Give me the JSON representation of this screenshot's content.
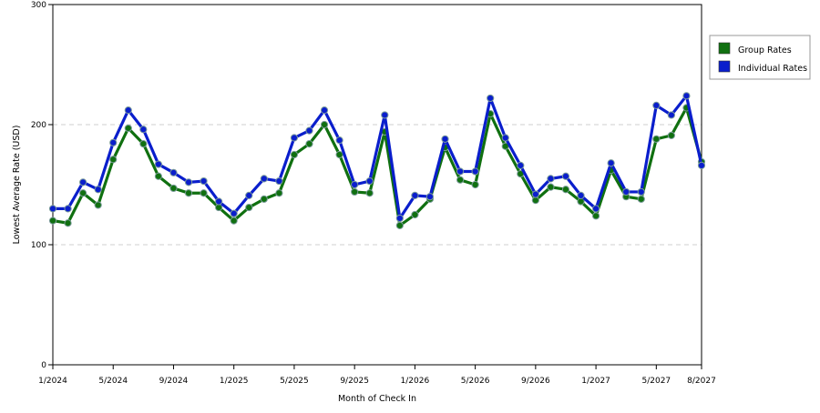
{
  "chart_data": {
    "type": "line",
    "title": "",
    "xlabel": "Month of Check In",
    "ylabel": "Lowest Average Rate (USD)",
    "ylim": [
      0,
      300
    ],
    "yticks": [
      "0",
      "100",
      "200",
      "300"
    ],
    "grid": "horizontal dashed",
    "legend_position": "right",
    "x": [
      "1/2024",
      "2/2024",
      "3/2024",
      "4/2024",
      "5/2024",
      "6/2024",
      "7/2024",
      "8/2024",
      "9/2024",
      "10/2024",
      "11/2024",
      "12/2024",
      "1/2025",
      "2/2025",
      "3/2025",
      "4/2025",
      "5/2025",
      "6/2025",
      "7/2025",
      "8/2025",
      "9/2025",
      "10/2025",
      "11/2025",
      "12/2025",
      "1/2026",
      "2/2026",
      "3/2026",
      "4/2026",
      "5/2026",
      "6/2026",
      "7/2026",
      "8/2026",
      "9/2026",
      "10/2026",
      "11/2026",
      "12/2026",
      "1/2027",
      "2/2027",
      "3/2027",
      "4/2027",
      "5/2027",
      "6/2027",
      "7/2027",
      "8/2027"
    ],
    "xticks": [
      "1/2024",
      "5/2024",
      "9/2024",
      "1/2025",
      "5/2025",
      "9/2025",
      "1/2026",
      "5/2026",
      "9/2026",
      "1/2027",
      "5/2027",
      "8/2027"
    ],
    "series": [
      {
        "name": "Group Rates",
        "color": "#107010",
        "values": [
          120,
          118,
          143,
          133,
          171,
          197,
          184,
          157,
          147,
          143,
          143,
          131,
          120,
          131,
          138,
          143,
          175,
          184,
          200,
          175,
          144,
          143,
          194,
          116,
          125,
          138,
          181,
          154,
          150,
          209,
          182,
          159,
          137,
          148,
          146,
          136,
          124,
          162,
          140,
          138,
          188,
          191,
          214,
          169
        ]
      },
      {
        "name": "Individual Rates",
        "color": "#0a1ecc",
        "values": [
          130,
          130,
          152,
          146,
          185,
          212,
          196,
          167,
          160,
          152,
          153,
          136,
          126,
          141,
          155,
          153,
          189,
          195,
          212,
          187,
          150,
          153,
          208,
          122,
          141,
          140,
          188,
          161,
          161,
          222,
          189,
          166,
          142,
          155,
          157,
          141,
          130,
          168,
          144,
          144,
          216,
          208,
          224,
          166
        ]
      }
    ]
  }
}
